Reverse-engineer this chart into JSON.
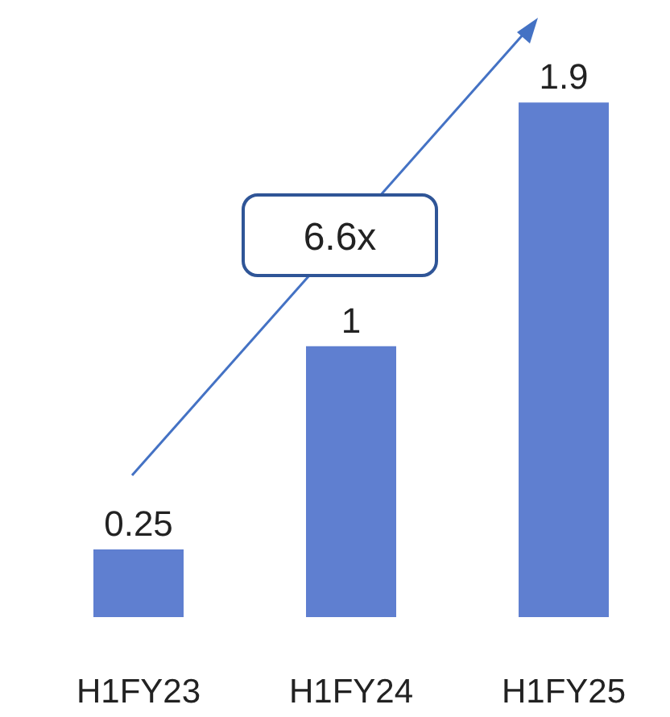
{
  "chart_data": {
    "type": "bar",
    "categories": [
      "H1FY23",
      "H1FY24",
      "H1FY25"
    ],
    "series": [
      {
        "color": "#5f7fd0",
        "values": [
          0.25,
          1,
          1.9
        ]
      }
    ],
    "data_labels": true,
    "annotations": [
      "6.6x"
    ]
  }
}
